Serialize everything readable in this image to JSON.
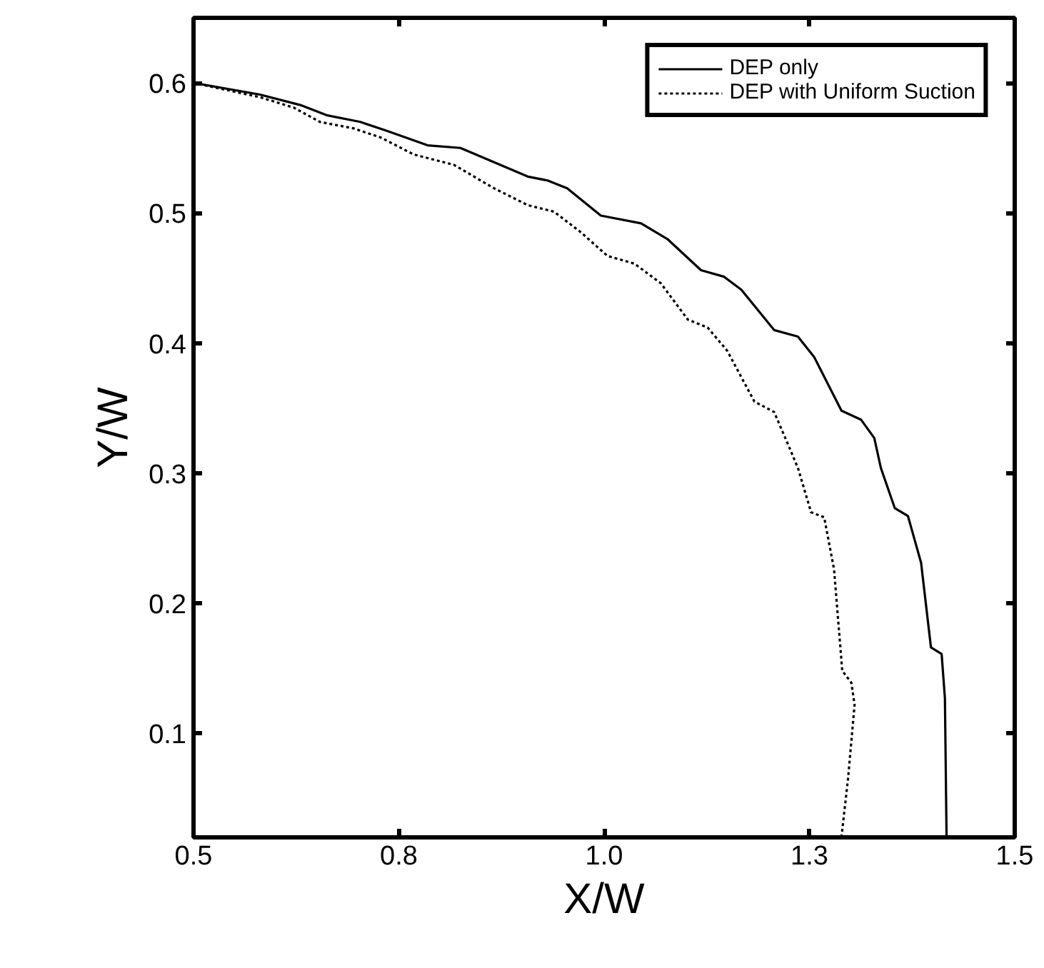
{
  "chart_data": {
    "type": "line",
    "xlabel": "X/W",
    "ylabel": "Y/W",
    "xlim": [
      0.5,
      1.5
    ],
    "ylim": [
      0.02,
      0.65
    ],
    "xticks": [
      0.5,
      {
        "value": 0.75,
        "label": "0.8"
      },
      {
        "value": 1.0,
        "label": "1.0"
      },
      {
        "value": 1.25,
        "label": "1.3"
      },
      1.5
    ],
    "yticks": [
      0.1,
      0.2,
      0.3,
      0.4,
      0.5,
      0.6
    ],
    "grid": false,
    "legend": "top right",
    "marker": "none",
    "series": [
      {
        "name": "DEP only",
        "color": "#000000",
        "line_style": "solid",
        "x": [
          0.5,
          0.581,
          0.63,
          0.663,
          0.703,
          0.736,
          0.785,
          0.825,
          0.866,
          0.907,
          0.931,
          0.955,
          0.996,
          1.045,
          1.077,
          1.118,
          1.146,
          1.167,
          1.207,
          1.236,
          1.256,
          1.289,
          1.313,
          1.329,
          1.337,
          1.354,
          1.37,
          1.386,
          1.398,
          1.411,
          1.415,
          1.417
        ],
        "values": [
          0.6,
          0.591,
          0.583,
          0.575,
          0.57,
          0.563,
          0.552,
          0.55,
          0.539,
          0.528,
          0.525,
          0.519,
          0.498,
          0.492,
          0.48,
          0.456,
          0.451,
          0.441,
          0.41,
          0.405,
          0.389,
          0.348,
          0.341,
          0.327,
          0.304,
          0.273,
          0.267,
          0.231,
          0.166,
          0.161,
          0.127,
          0.02
        ]
      },
      {
        "name": "DEP with Uniform Suction",
        "color": "#000000",
        "line_style": "dotted",
        "x": [
          0.5,
          0.581,
          0.622,
          0.654,
          0.695,
          0.728,
          0.768,
          0.817,
          0.866,
          0.907,
          0.939,
          0.972,
          1.004,
          1.037,
          1.069,
          1.102,
          1.126,
          1.15,
          1.183,
          1.207,
          1.224,
          1.236,
          1.252,
          1.268,
          1.28,
          1.29,
          1.301,
          1.305,
          1.297,
          1.289
        ],
        "values": [
          0.6,
          0.589,
          0.581,
          0.57,
          0.565,
          0.558,
          0.545,
          0.537,
          0.519,
          0.506,
          0.501,
          0.485,
          0.467,
          0.461,
          0.446,
          0.418,
          0.412,
          0.394,
          0.355,
          0.347,
          0.322,
          0.304,
          0.27,
          0.266,
          0.226,
          0.148,
          0.139,
          0.122,
          0.065,
          0.02
        ]
      }
    ]
  }
}
